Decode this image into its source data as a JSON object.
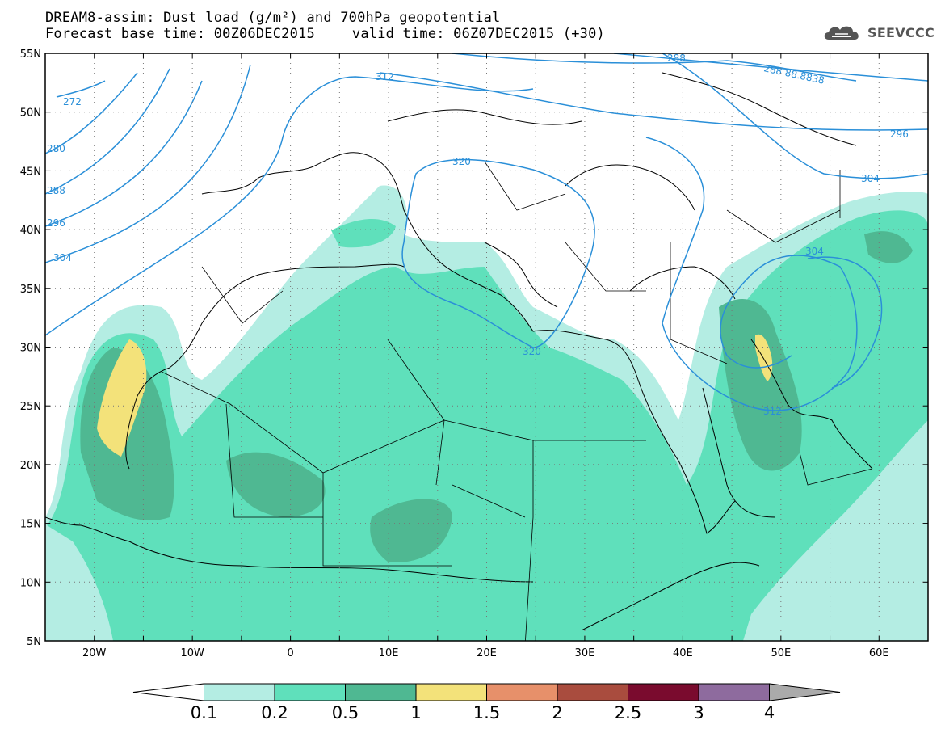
{
  "title": {
    "line1": "DREAM8-assim: Dust load (g/m²) and 700hPa geopotential",
    "line2_left": "Forecast base time: 00Z06DEC2015",
    "line2_right": "valid time: 06Z07DEC2015 (+30)"
  },
  "logo": {
    "text": "SEEVCCC",
    "icon": "cloud-logo-icon"
  },
  "map": {
    "lon_range": [
      -25,
      65
    ],
    "lat_range": [
      5,
      55
    ],
    "lon_ticks": [
      "20W",
      "10W",
      "0",
      "10E",
      "20E",
      "30E",
      "40E",
      "50E",
      "60E"
    ],
    "lat_ticks": [
      "55N",
      "50N",
      "45N",
      "40N",
      "35N",
      "30N",
      "25N",
      "20N",
      "15N",
      "10N",
      "5N"
    ],
    "grid": "dotted",
    "contour_labels": [
      "272",
      "280",
      "288",
      "296",
      "304",
      "312",
      "320",
      "320",
      "312",
      "304",
      "288",
      "288 88.8838",
      "296",
      "304"
    ]
  },
  "colorbar": {
    "labels": [
      "0.1",
      "0.2",
      "0.5",
      "1",
      "1.5",
      "2",
      "2.5",
      "3",
      "4"
    ],
    "colors": [
      "#ffffff",
      "#b4ede3",
      "#5fe0bb",
      "#4fb892",
      "#f3e27a",
      "#e7906a",
      "#a94c3e",
      "#7a0b2e",
      "#8e6b9e",
      "#aaaaaa"
    ]
  }
}
